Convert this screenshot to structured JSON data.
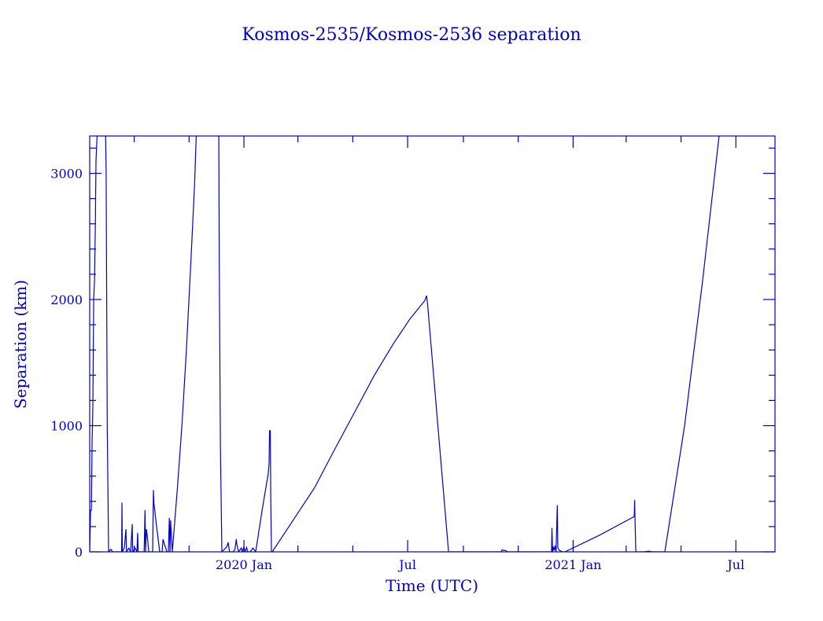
{
  "chart_data": {
    "type": "line",
    "title": "Kosmos-2535/Kosmos-2536 separation",
    "xlabel": "Time (UTC)",
    "ylabel": "Separation (km)",
    "x_unit": "days since 2020-01-01",
    "xlim": [
      -171.5,
      590.5
    ],
    "ylim": [
      0,
      3296
    ],
    "grid": false,
    "color": "#0000c8",
    "x_ticks": [
      {
        "value": 0,
        "label": "2020 Jan"
      },
      {
        "value": 182,
        "label": "Jul"
      },
      {
        "value": 366,
        "label": "2021 Jan"
      },
      {
        "value": 547,
        "label": "Jul"
      }
    ],
    "x_minor_ticks": [
      -122,
      -61,
      60,
      121,
      244,
      305,
      425,
      486
    ],
    "y_ticks": [
      {
        "value": 0,
        "label": "0"
      },
      {
        "value": 1000,
        "label": "1000"
      },
      {
        "value": 2000,
        "label": "2000"
      },
      {
        "value": 3000,
        "label": "3000"
      }
    ],
    "y_minor_step": 200,
    "series": [
      {
        "name": "separation",
        "points": [
          [
            -171.5,
            0
          ],
          [
            -170.5,
            330
          ],
          [
            -169.7,
            330
          ],
          [
            -168.8,
            880
          ],
          [
            -168,
            1150
          ],
          [
            -167,
            2000
          ],
          [
            -166.2,
            2150
          ],
          [
            -165.2,
            2600
          ],
          [
            -164.5,
            3100
          ],
          [
            -162.7,
            3400
          ],
          [
            -154,
            3400
          ],
          [
            -153.2,
            3000
          ],
          [
            -152,
            1000
          ],
          [
            -151.4,
            600
          ],
          [
            -150.5,
            0
          ],
          [
            -148,
            20
          ],
          [
            -146,
            0
          ],
          [
            -140,
            0
          ],
          [
            -136,
            0
          ],
          [
            -135.6,
            390
          ],
          [
            -135.2,
            0
          ],
          [
            -133,
            30
          ],
          [
            -131.2,
            180
          ],
          [
            -130.6,
            0
          ],
          [
            -128,
            30
          ],
          [
            -126,
            0
          ],
          [
            -124.2,
            220
          ],
          [
            -123.8,
            0
          ],
          [
            -121,
            30
          ],
          [
            -119,
            0
          ],
          [
            -118.1,
            150
          ],
          [
            -117.6,
            0
          ],
          [
            -114,
            0
          ],
          [
            -111,
            0
          ],
          [
            -110,
            330
          ],
          [
            -109.4,
            0
          ],
          [
            -108.4,
            180
          ],
          [
            -107.2,
            110
          ],
          [
            -105.9,
            0
          ],
          [
            -104,
            0
          ],
          [
            -101.5,
            0
          ],
          [
            -100.6,
            490
          ],
          [
            -100,
            380
          ],
          [
            -97,
            190
          ],
          [
            -93.6,
            0
          ],
          [
            -91,
            0
          ],
          [
            -90,
            100
          ],
          [
            -89.2,
            80
          ],
          [
            -87,
            30
          ],
          [
            -85.7,
            0
          ],
          [
            -84,
            0
          ],
          [
            -83,
            270
          ],
          [
            -82.2,
            0
          ],
          [
            -81.5,
            250
          ],
          [
            -79.6,
            0
          ],
          [
            -74,
            500
          ],
          [
            -69,
            1000
          ],
          [
            -64,
            1600
          ],
          [
            -59,
            2300
          ],
          [
            -55,
            2900
          ],
          [
            -52.5,
            3400
          ],
          [
            -28,
            3400
          ],
          [
            -27.5,
            2400
          ],
          [
            -26.2,
            850
          ],
          [
            -24.5,
            0
          ],
          [
            -19,
            40
          ],
          [
            -17.5,
            75
          ],
          [
            -16,
            0
          ],
          [
            -12,
            0
          ],
          [
            -10,
            20
          ],
          [
            -8.5,
            100
          ],
          [
            -7.9,
            60
          ],
          [
            -6,
            0
          ],
          [
            -3,
            30
          ],
          [
            -2,
            0
          ],
          [
            0,
            40
          ],
          [
            1,
            0
          ],
          [
            3,
            35
          ],
          [
            4,
            0
          ],
          [
            7,
            0
          ],
          [
            10,
            30
          ],
          [
            13.1,
            0
          ],
          [
            20,
            320
          ],
          [
            27,
            620
          ],
          [
            28,
            700
          ],
          [
            28.5,
            960
          ],
          [
            29.4,
            960
          ],
          [
            29.8,
            420
          ],
          [
            30.6,
            0
          ],
          [
            31.5,
            0
          ],
          [
            50,
            200
          ],
          [
            78.7,
            510
          ],
          [
            100,
            800
          ],
          [
            122.5,
            1100
          ],
          [
            145,
            1400
          ],
          [
            166.2,
            1650
          ],
          [
            185,
            1850
          ],
          [
            201,
            1990
          ],
          [
            203,
            2030
          ],
          [
            204,
            1980
          ],
          [
            227.5,
            0
          ],
          [
            230,
            0
          ],
          [
            286,
            0
          ],
          [
            287,
            15
          ],
          [
            291,
            10
          ],
          [
            293,
            0
          ],
          [
            342,
            0
          ],
          [
            342.5,
            190
          ],
          [
            343.2,
            0
          ],
          [
            344,
            40
          ],
          [
            345,
            10
          ],
          [
            346,
            50
          ],
          [
            347,
            0
          ],
          [
            348.4,
            370
          ],
          [
            349,
            30
          ],
          [
            351,
            10
          ],
          [
            354.3,
            0
          ],
          [
            357,
            0
          ],
          [
            395,
            130
          ],
          [
            434,
            280
          ],
          [
            434.4,
            410
          ],
          [
            434.8,
            280
          ],
          [
            435.7,
            0
          ],
          [
            445,
            0
          ],
          [
            450,
            5
          ],
          [
            454,
            0
          ],
          [
            468,
            0
          ],
          [
            490,
            1000
          ],
          [
            510,
            2150
          ],
          [
            528.4,
            3300
          ]
        ]
      }
    ]
  }
}
